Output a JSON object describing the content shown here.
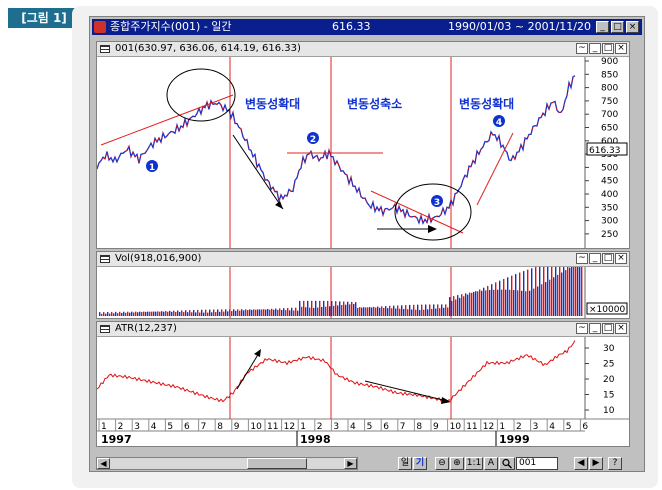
{
  "figure_tag": "[그림 1]",
  "window": {
    "title": "종합주가지수(001) - 일간",
    "price": "616.33",
    "date_range": "1990/01/03 ~ 2001/11/20",
    "buttons": {
      "minimize": "_",
      "maximize": "□",
      "close": "×"
    }
  },
  "price_pane": {
    "header": "001(630.97, 636.06, 614.19, 616.33)",
    "current_value_box": "616.33",
    "y_ticks": [
      "900",
      "850",
      "800",
      "750",
      "700",
      "650",
      "600",
      "550",
      "500",
      "450",
      "400",
      "350",
      "300",
      "250"
    ],
    "region_labels": [
      "변동성확대",
      "변동성축소",
      "변동성확대"
    ],
    "markers": [
      "1",
      "2",
      "3",
      "4"
    ]
  },
  "volume_pane": {
    "header": "Vol(918,016,900)",
    "unit_box": "×10000"
  },
  "atr_pane": {
    "header": "ATR(12,237)",
    "y_ticks": [
      "30",
      "25",
      "20",
      "15",
      "10"
    ]
  },
  "x_axis": {
    "month_ticks": [
      "1",
      "2",
      "3",
      "4",
      "5",
      "6",
      "7",
      "8",
      "9",
      "10",
      "11",
      "12",
      "1",
      "2",
      "3",
      "4",
      "5",
      "6",
      "7",
      "8",
      "9",
      "10",
      "11",
      "12",
      "1",
      "2",
      "3",
      "4",
      "5",
      "6"
    ],
    "years": [
      "1997",
      "1998",
      "1999"
    ]
  },
  "toolbar": {
    "scroll_left": "◀",
    "scroll_right": "▶",
    "mode_week": "일",
    "mode_day": "기",
    "zoom_out": "⊖",
    "zoom_in": "⊕",
    "ratio": "1:1",
    "text_tool": "A",
    "search_icon": "search-icon",
    "code_input": "001",
    "nav_first": "◀",
    "nav_next": "▶",
    "help": "?"
  },
  "colors": {
    "up": "#e01010",
    "down": "#1030d0",
    "guide": "#e02020",
    "title_bar": "#0a1f8e",
    "tag": "#1e6f8f"
  }
}
